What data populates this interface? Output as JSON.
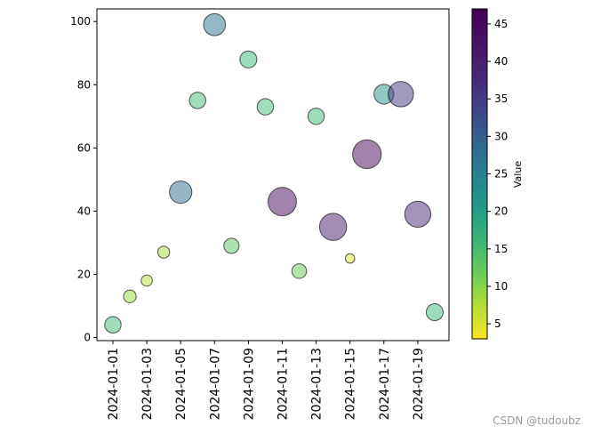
{
  "chart_data": {
    "type": "scatter",
    "title": "",
    "xlabel": "",
    "ylabel": "",
    "x": [
      "2024-01-01",
      "2024-01-02",
      "2024-01-03",
      "2024-01-04",
      "2024-01-05",
      "2024-01-06",
      "2024-01-07",
      "2024-01-08",
      "2024-01-09",
      "2024-01-10",
      "2024-01-11",
      "2024-01-12",
      "2024-01-13",
      "2024-01-14",
      "2024-01-15",
      "2024-01-16",
      "2024-01-17",
      "2024-01-18",
      "2024-01-19",
      "2024-01-20"
    ],
    "y": [
      4,
      13,
      18,
      27,
      46,
      75,
      99,
      29,
      88,
      73,
      43,
      21,
      70,
      35,
      25,
      58,
      77,
      77,
      39,
      8
    ],
    "color_values": [
      15,
      9,
      7,
      8,
      28,
      15,
      27,
      13,
      16,
      15,
      45,
      12,
      15,
      41,
      5,
      46,
      22,
      36,
      38,
      16
    ],
    "size_values": [
      15,
      9,
      7,
      8,
      28,
      15,
      27,
      13,
      16,
      15,
      45,
      12,
      15,
      41,
      5,
      46,
      22,
      36,
      38,
      16
    ],
    "x_tick_labels": [
      "2024-01-01",
      "2024-01-03",
      "2024-01-05",
      "2024-01-07",
      "2024-01-09",
      "2024-01-11",
      "2024-01-13",
      "2024-01-15",
      "2024-01-17",
      "2024-01-19"
    ],
    "y_ticks": [
      0,
      20,
      40,
      60,
      80,
      100
    ],
    "ylim": [
      -1,
      104
    ],
    "colorbar": {
      "label": "Value",
      "colormap": "viridis_r",
      "range": [
        3,
        47
      ],
      "ticks": [
        5,
        10,
        15,
        20,
        25,
        30,
        35,
        40,
        45
      ]
    },
    "marker_alpha": 0.5,
    "marker_edge_color": "#000000",
    "grid": false,
    "legend": "none"
  },
  "watermark": "CSDN @tudoubz"
}
